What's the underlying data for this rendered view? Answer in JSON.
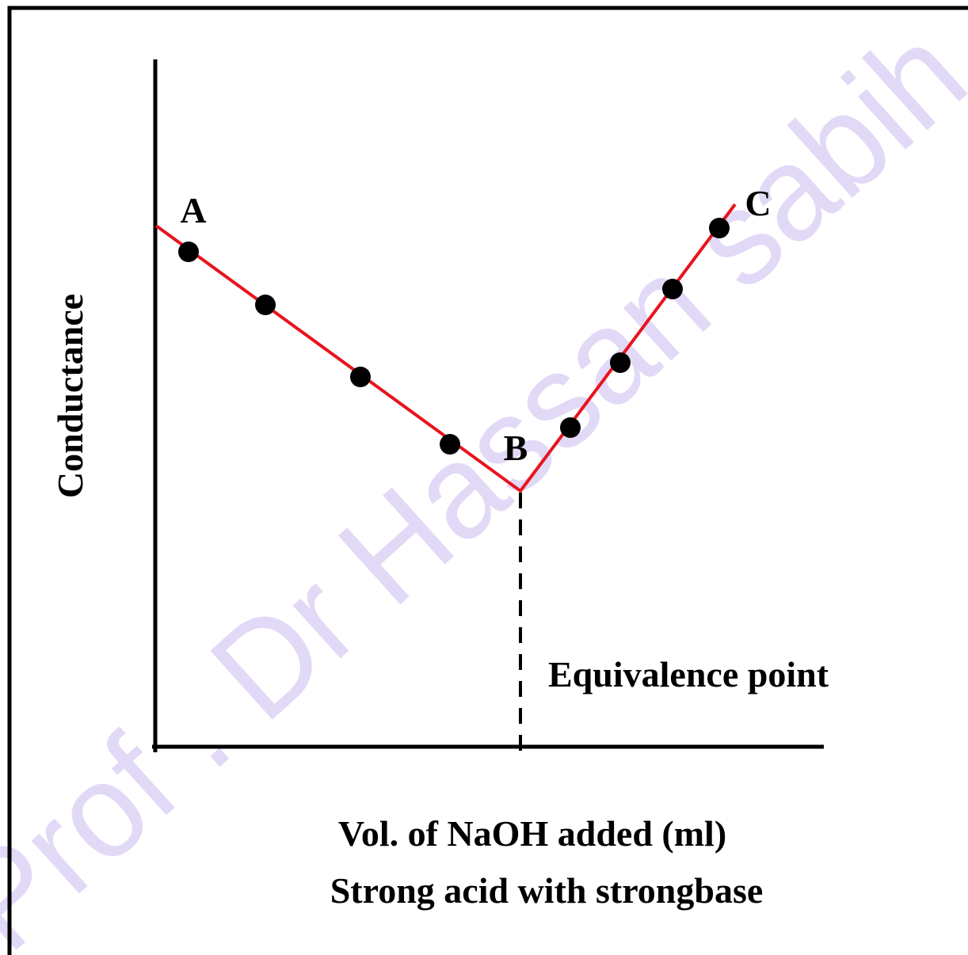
{
  "diagram": {
    "watermark": "Prof . Dr Hassan sabih",
    "y_axis_label": "Conductance",
    "x_axis_label": "Vol. of NaOH added (ml)",
    "subtitle": "Strong acid with strongbase",
    "points": {
      "a": "A",
      "b": "B",
      "c": "C"
    },
    "annotation": "Equivalence point"
  }
}
